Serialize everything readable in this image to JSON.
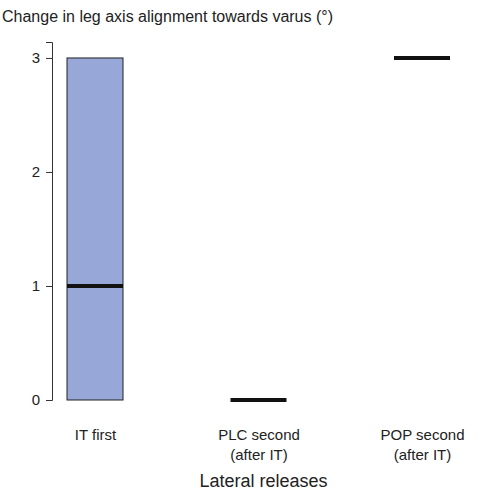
{
  "chart_data": {
    "type": "box",
    "title": "Change in leg axis alignment towards varus (°)",
    "x_label": "Lateral releases",
    "categories": [
      "IT first",
      "PLC second\n(after IT)",
      "POP second\n(after IT)"
    ],
    "q1": [
      0,
      0,
      3
    ],
    "q3": [
      3,
      0,
      3
    ],
    "median": [
      1,
      0,
      3
    ],
    "color": "#97a7d8",
    "ylim": [
      0,
      3.14
    ],
    "yticks": [
      0,
      1,
      2,
      3
    ],
    "grid": false
  }
}
